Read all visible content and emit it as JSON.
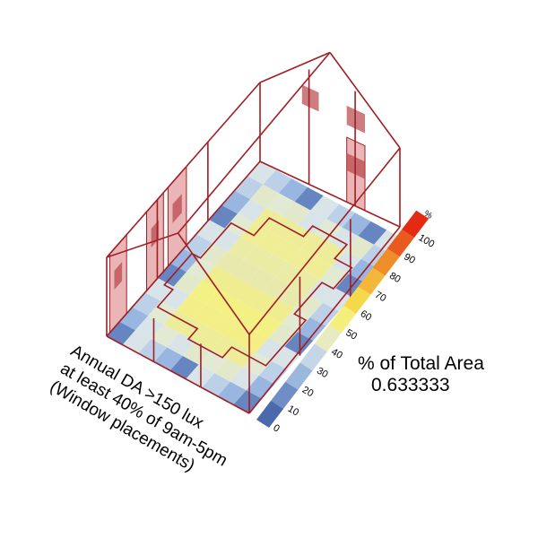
{
  "legend": {
    "unit": "%",
    "ticks": [
      "0",
      "10",
      "20",
      "30",
      "40",
      "50",
      "60",
      "70",
      "80",
      "90",
      "100"
    ],
    "colors": [
      "#4a6aab",
      "#6f8ec5",
      "#9bb7dc",
      "#c5d6e6",
      "#e8eac0",
      "#f4ef7a",
      "#f6d94a",
      "#f5b73a",
      "#ef8d2a",
      "#ea5a1f",
      "#e42b12"
    ]
  },
  "caption": {
    "line1": "Annual DA >150 lux",
    "line2": "at least 40% of 9am-5pm",
    "line3": "(Window placements)"
  },
  "metric": {
    "label": "% of Total Area",
    "value": "0.633333"
  },
  "colors": {
    "wireframe": "#a01e24",
    "window_fill": "#d9787a",
    "sill_fill": "#b8454a"
  }
}
